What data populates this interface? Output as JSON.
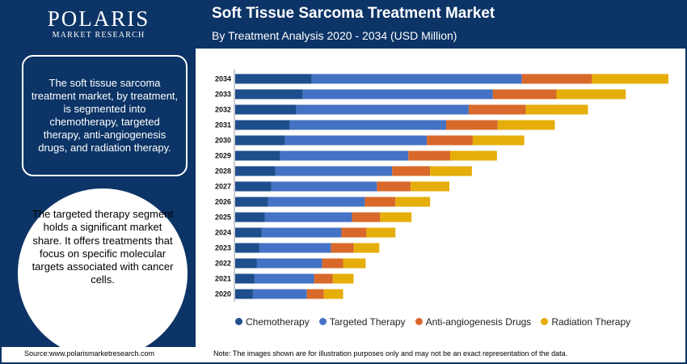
{
  "logo": {
    "main": "POLARIS",
    "sub": "MARKET RESEARCH"
  },
  "header": {
    "title": "Soft Tissue Sarcoma Treatment Market",
    "subtitle": "By Treatment Analysis 2020 - 2034 (USD Million)"
  },
  "left": {
    "box_text": "The soft tissue sarcoma treatment market, by treatment, is segmented into chemotherapy, targeted therapy, anti-angiogenesis drugs, and radiation therapy.",
    "circle_text": "The targeted therapy segment holds a significant market share. It offers treatments that focus on specific molecular targets associated with cancer cells."
  },
  "footer": {
    "source": "Source:www.polarismarketresearch.com",
    "note": "Note: The images shown are for illustration purposes only and may not be an exact representation of the data."
  },
  "colors": {
    "navy": "#0c3466",
    "chemotherapy": "#1f4e8c",
    "targeted": "#4472c4",
    "anti_angio": "#d9692a",
    "radiation": "#e5ae0a"
  },
  "chart_data": {
    "type": "bar",
    "orientation": "horizontal",
    "stacked": true,
    "categories": [
      "2034",
      "2033",
      "2032",
      "2031",
      "2030",
      "2029",
      "2028",
      "2027",
      "2026",
      "2025",
      "2024",
      "2023",
      "2022",
      "2021",
      "2020"
    ],
    "series": [
      {
        "name": "Chemotherapy",
        "color": "#1f4e8c",
        "values": [
          95,
          84,
          76,
          68,
          62,
          56,
          50,
          45,
          41,
          37,
          33,
          30,
          27,
          24,
          22
        ]
      },
      {
        "name": "Targeted Therapy",
        "color": "#4472c4",
        "values": [
          261,
          236,
          214,
          194,
          176,
          159,
          145,
          131,
          120,
          108,
          99,
          89,
          81,
          74,
          67
        ]
      },
      {
        "name": "Anti-angiogenesis Drugs",
        "color": "#d9692a",
        "values": [
          87,
          79,
          71,
          64,
          57,
          52,
          47,
          42,
          38,
          35,
          31,
          28,
          26,
          23,
          21
        ]
      },
      {
        "name": "Radiation Therapy",
        "color": "#e5ae0a",
        "values": [
          95,
          86,
          77,
          71,
          64,
          58,
          52,
          48,
          43,
          39,
          36,
          32,
          28,
          26,
          24
        ]
      }
    ],
    "legend_position": "bottom",
    "grid": false,
    "xlim": [
      0,
      540
    ]
  }
}
